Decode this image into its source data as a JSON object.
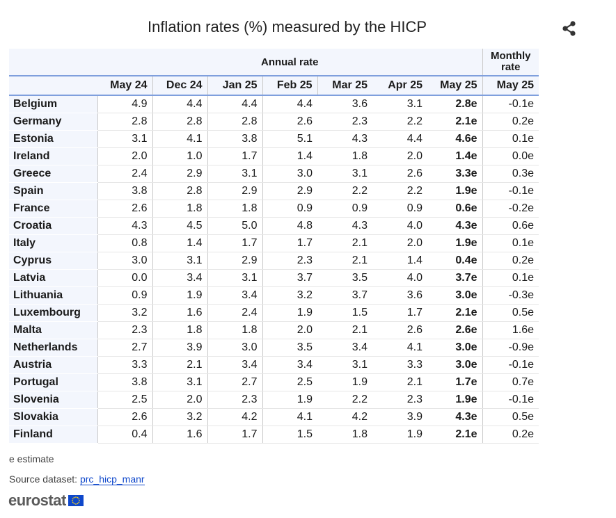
{
  "title": "Inflation rates (%) measured by the HICP",
  "icons": {
    "share": "share-icon",
    "flag": "eu-flag-icon"
  },
  "colors": {
    "header_bg": "#f3f6fd",
    "header_rule": "#7f9fdd",
    "link": "#0e47cb",
    "logo_blue": "#0e47cb"
  },
  "header": {
    "annual_group": "Annual rate",
    "monthly_group_line1": "Monthly",
    "monthly_group_line2": "rate",
    "columns": [
      "May 24",
      "Dec 24",
      "Jan 25",
      "Feb 25",
      "Mar 25",
      "Apr 25",
      "May 25",
      "May 25"
    ]
  },
  "chart_data": {
    "type": "table",
    "title": "Inflation rates (%) measured by the HICP",
    "column_groups": [
      {
        "name": "Annual rate",
        "columns": [
          "May 24",
          "Dec 24",
          "Jan 25",
          "Feb 25",
          "Mar 25",
          "Apr 25",
          "May 25"
        ]
      },
      {
        "name": "Monthly rate",
        "columns": [
          "May 25"
        ]
      }
    ],
    "rows": [
      {
        "country": "Belgium",
        "values": [
          "4.9",
          "4.4",
          "4.4",
          "4.4",
          "3.6",
          "3.1",
          "2.8e",
          "-0.1e"
        ]
      },
      {
        "country": "Germany",
        "values": [
          "2.8",
          "2.8",
          "2.8",
          "2.6",
          "2.3",
          "2.2",
          "2.1e",
          "0.2e"
        ]
      },
      {
        "country": "Estonia",
        "values": [
          "3.1",
          "4.1",
          "3.8",
          "5.1",
          "4.3",
          "4.4",
          "4.6e",
          "0.1e"
        ]
      },
      {
        "country": "Ireland",
        "values": [
          "2.0",
          "1.0",
          "1.7",
          "1.4",
          "1.8",
          "2.0",
          "1.4e",
          "0.0e"
        ]
      },
      {
        "country": "Greece",
        "values": [
          "2.4",
          "2.9",
          "3.1",
          "3.0",
          "3.1",
          "2.6",
          "3.3e",
          "0.3e"
        ]
      },
      {
        "country": "Spain",
        "values": [
          "3.8",
          "2.8",
          "2.9",
          "2.9",
          "2.2",
          "2.2",
          "1.9e",
          "-0.1e"
        ]
      },
      {
        "country": "France",
        "values": [
          "2.6",
          "1.8",
          "1.8",
          "0.9",
          "0.9",
          "0.9",
          "0.6e",
          "-0.2e"
        ]
      },
      {
        "country": "Croatia",
        "values": [
          "4.3",
          "4.5",
          "5.0",
          "4.8",
          "4.3",
          "4.0",
          "4.3e",
          "0.6e"
        ]
      },
      {
        "country": "Italy",
        "values": [
          "0.8",
          "1.4",
          "1.7",
          "1.7",
          "2.1",
          "2.0",
          "1.9e",
          "0.1e"
        ]
      },
      {
        "country": "Cyprus",
        "values": [
          "3.0",
          "3.1",
          "2.9",
          "2.3",
          "2.1",
          "1.4",
          "0.4e",
          "0.2e"
        ]
      },
      {
        "country": "Latvia",
        "values": [
          "0.0",
          "3.4",
          "3.1",
          "3.7",
          "3.5",
          "4.0",
          "3.7e",
          "0.1e"
        ]
      },
      {
        "country": "Lithuania",
        "values": [
          "0.9",
          "1.9",
          "3.4",
          "3.2",
          "3.7",
          "3.6",
          "3.0e",
          "-0.3e"
        ]
      },
      {
        "country": "Luxembourg",
        "values": [
          "3.2",
          "1.6",
          "2.4",
          "1.9",
          "1.5",
          "1.7",
          "2.1e",
          "0.5e"
        ]
      },
      {
        "country": "Malta",
        "values": [
          "2.3",
          "1.8",
          "1.8",
          "2.0",
          "2.1",
          "2.6",
          "2.6e",
          "1.6e"
        ]
      },
      {
        "country": "Netherlands",
        "values": [
          "2.7",
          "3.9",
          "3.0",
          "3.5",
          "3.4",
          "4.1",
          "3.0e",
          "-0.9e"
        ]
      },
      {
        "country": "Austria",
        "values": [
          "3.3",
          "2.1",
          "3.4",
          "3.4",
          "3.1",
          "3.3",
          "3.0e",
          "-0.1e"
        ]
      },
      {
        "country": "Portugal",
        "values": [
          "3.8",
          "3.1",
          "2.7",
          "2.5",
          "1.9",
          "2.1",
          "1.7e",
          "0.7e"
        ]
      },
      {
        "country": "Slovenia",
        "values": [
          "2.5",
          "2.0",
          "2.3",
          "1.9",
          "2.2",
          "2.3",
          "1.9e",
          "-0.1e"
        ]
      },
      {
        "country": "Slovakia",
        "values": [
          "2.6",
          "3.2",
          "4.2",
          "4.1",
          "4.2",
          "3.9",
          "4.3e",
          "0.5e"
        ]
      },
      {
        "country": "Finland",
        "values": [
          "0.4",
          "1.6",
          "1.7",
          "1.5",
          "1.8",
          "1.9",
          "2.1e",
          "0.2e"
        ]
      }
    ]
  },
  "footer": {
    "note": "e estimate",
    "source_label": "Source dataset: ",
    "source_link": "prc_hicp_manr",
    "logo_text": "eurostat"
  }
}
